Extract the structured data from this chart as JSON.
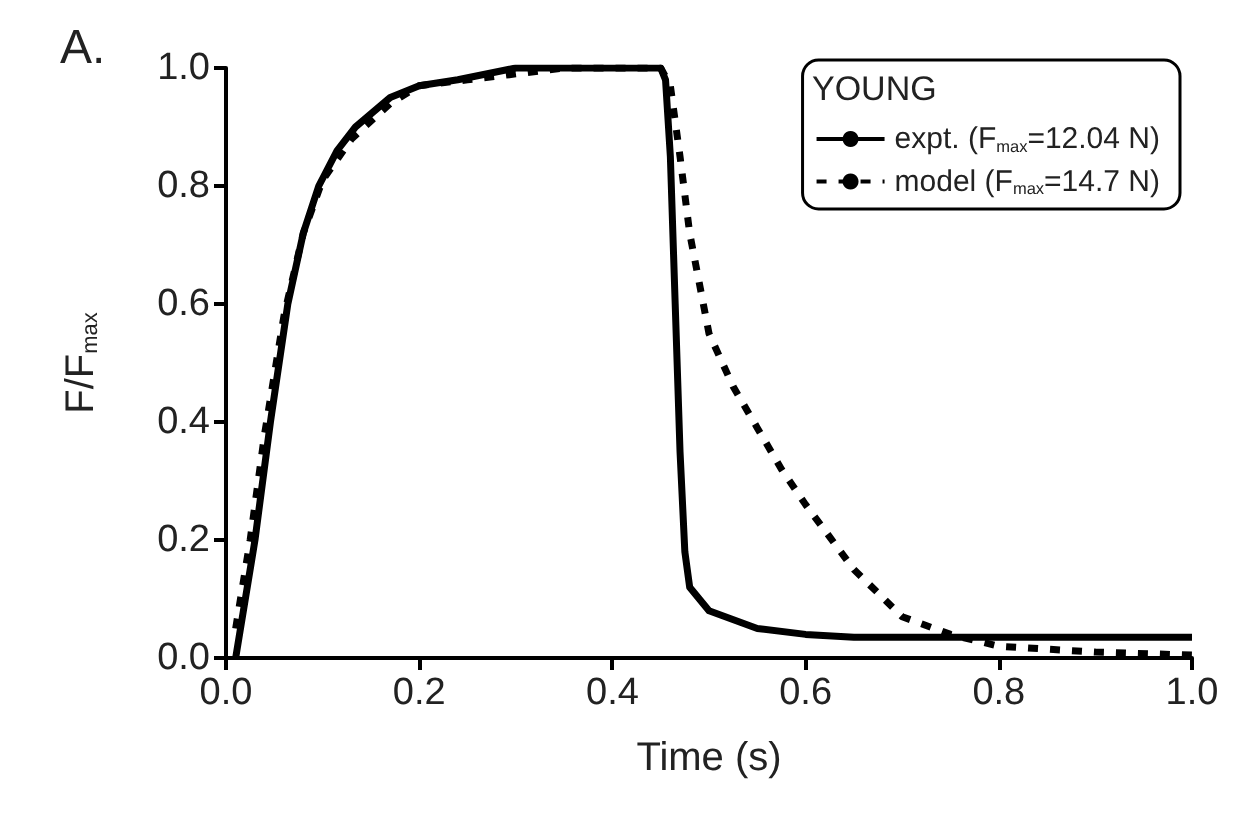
{
  "chart_data": {
    "type": "line",
    "xlabel": "Time (s)",
    "ylabel": "F/F$_{max}$",
    "legend_title": "YOUNG",
    "annotations": [
      "A."
    ],
    "xlim": [
      0,
      1
    ],
    "xticks": [
      {
        "value": 0,
        "label": "0.0"
      },
      0.2,
      0.4,
      0.6,
      0.8,
      {
        "value": 1,
        "label": "1.0"
      }
    ],
    "ylim": [
      0,
      1
    ],
    "yticks": [
      {
        "value": 0,
        "label": "0.0"
      },
      0.2,
      0.4,
      0.6,
      0.8,
      {
        "value": 1,
        "label": "1.0"
      }
    ],
    "grid": false,
    "legend": "top right",
    "marker": "none",
    "series": [
      {
        "name": "expt. (F$_{max}$=12.04 N)",
        "color": "#000000",
        "line_style": "solid",
        "x": [
          0.01,
          0.015,
          0.03,
          0.046,
          0.064,
          0.08,
          0.096,
          0.115,
          0.134,
          0.17,
          0.2,
          0.24,
          0.3,
          0.35,
          0.4,
          0.44,
          0.45,
          0.455,
          0.46,
          0.465,
          0.47,
          0.475,
          0.48,
          0.5,
          0.55,
          0.6,
          0.65,
          0.7,
          0.8,
          0.9,
          1.0
        ],
        "values": [
          0.0,
          0.05,
          0.2,
          0.4,
          0.6,
          0.72,
          0.8,
          0.86,
          0.9,
          0.95,
          0.97,
          0.98,
          1.0,
          1.0,
          1.0,
          1.0,
          1.0,
          0.98,
          0.85,
          0.6,
          0.35,
          0.18,
          0.12,
          0.08,
          0.05,
          0.04,
          0.035,
          0.035,
          0.035,
          0.035,
          0.035
        ]
      },
      {
        "name": "model (F$_{max}$=14.7 N)",
        "color": "#000000",
        "line_style": "dashed",
        "x": [
          0.01,
          0.025,
          0.04,
          0.06,
          0.08,
          0.1,
          0.13,
          0.17,
          0.2,
          0.25,
          0.3,
          0.35,
          0.4,
          0.45,
          0.46,
          0.47,
          0.48,
          0.5,
          0.525,
          0.55,
          0.575,
          0.6,
          0.65,
          0.7,
          0.75,
          0.8,
          0.9,
          1.0
        ],
        "values": [
          0.05,
          0.2,
          0.38,
          0.58,
          0.72,
          0.81,
          0.88,
          0.94,
          0.97,
          0.98,
          0.99,
          1.0,
          1.0,
          1.0,
          0.97,
          0.85,
          0.72,
          0.55,
          0.46,
          0.39,
          0.32,
          0.26,
          0.15,
          0.07,
          0.04,
          0.02,
          0.01,
          0.005
        ]
      }
    ]
  }
}
